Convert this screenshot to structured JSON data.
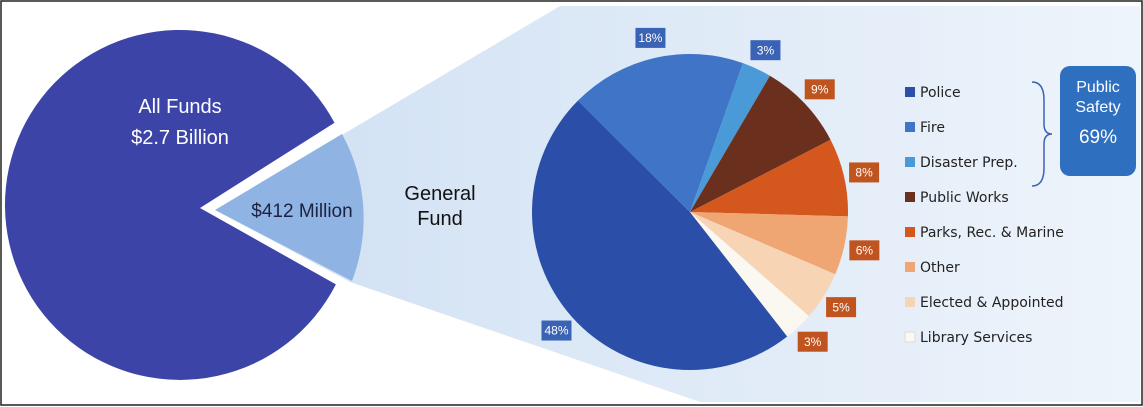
{
  "chart_data": {
    "type": "pie",
    "annotations": {
      "all_funds": "All Funds",
      "all_funds_total": "$2.7 Billion",
      "general_fund_total": "$412 Million",
      "general_fund": "General Fund",
      "group_name": "Public Safety",
      "group_share": "69%"
    },
    "categories": [
      "Police",
      "Fire",
      "Disaster Prep.",
      "Public Works",
      "Parks, Rec. & Marine",
      "Other",
      "Elected & Appointed",
      "Library Services"
    ],
    "values": [
      48,
      18,
      3,
      9,
      8,
      6,
      5,
      3
    ],
    "value_labels": [
      "48%",
      "18%",
      "3%",
      "9%",
      "8%",
      "6%",
      "5%",
      "3%"
    ],
    "colors": [
      "#2b4fa8",
      "#3f74c6",
      "#4a9ad8",
      "#6b2f1e",
      "#d4571e",
      "#f0a672",
      "#f7d4b4",
      "#fbf8f2"
    ],
    "label_colors": [
      "#3a62b5",
      "#3a62b5",
      "#3a62b5",
      "#c0541f",
      "#c0541f",
      "#c0541f",
      "#c0541f",
      "#c0541f"
    ]
  }
}
